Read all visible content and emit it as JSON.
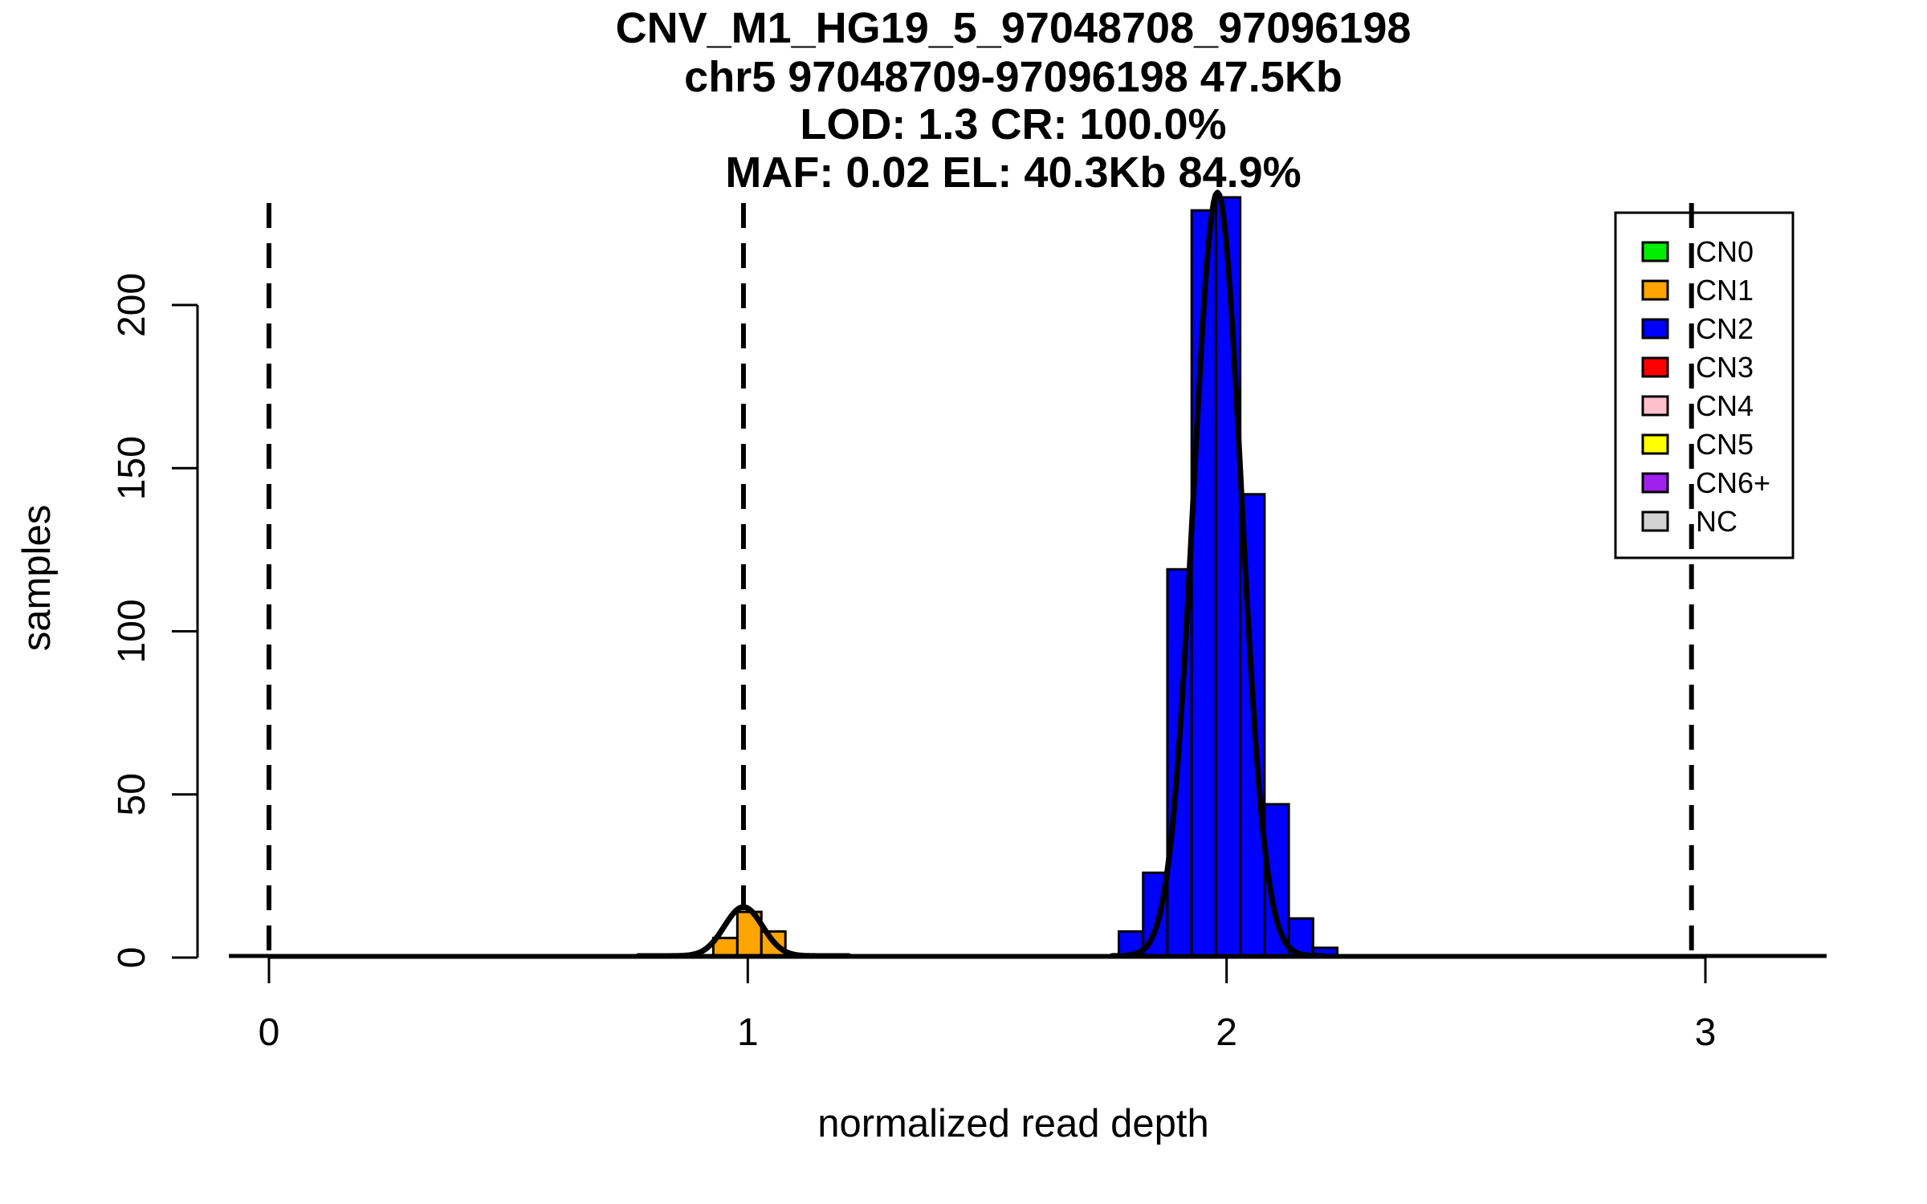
{
  "figure": {
    "background": "#FFFFFF",
    "foreground": "#000000"
  },
  "chart_data": {
    "type": "bar",
    "variant": "histogram-with-density-curves",
    "title_lines": [
      "CNV_M1_HG19_5_97048708_97096198",
      "chr5 97048709-97096198 47.5Kb",
      "LOD: 1.3 CR: 100.0%",
      "MAF: 0.02 EL: 40.3Kb 84.9%"
    ],
    "xlabel": "normalized read depth",
    "ylabel": "samples",
    "x_ticks": [
      0,
      1,
      2,
      3
    ],
    "y_ticks": [
      0,
      50,
      100,
      150,
      200
    ],
    "xlim": [
      -0.085,
      3.26
    ],
    "ylim": [
      0,
      233
    ],
    "grid": false,
    "guide_lines_x": [
      0,
      0.991,
      1.981,
      2.971
    ],
    "guide_line_style": "dashed-black",
    "series": [
      {
        "name": "CN1",
        "color": "#FFA500",
        "bin_start": 0.928,
        "bin_width": 0.0502,
        "counts": [
          6,
          14,
          8
        ],
        "density_curve": {
          "mean": 0.991,
          "sd": 0.04,
          "peak": 15
        }
      },
      {
        "name": "CN2",
        "color": "#0000FF",
        "bin_start": 1.775,
        "bin_width": 0.0507,
        "counts": [
          8,
          26,
          119,
          229,
          233,
          142,
          47,
          12,
          3
        ],
        "density_curve": {
          "mean": 1.981,
          "sd": 0.05,
          "peak": 234
        }
      }
    ],
    "legend": {
      "position": "topright",
      "items": [
        {
          "label": "CN0",
          "color": "#00EE00"
        },
        {
          "label": "CN1",
          "color": "#FFA500"
        },
        {
          "label": "CN2",
          "color": "#0000FF"
        },
        {
          "label": "CN3",
          "color": "#FF0000"
        },
        {
          "label": "CN4",
          "color": "#FFC0CB"
        },
        {
          "label": "CN5",
          "color": "#FFFF00"
        },
        {
          "label": "CN6+",
          "color": "#A020F0"
        },
        {
          "label": "NC",
          "color": "#D3D3D3"
        }
      ]
    }
  }
}
